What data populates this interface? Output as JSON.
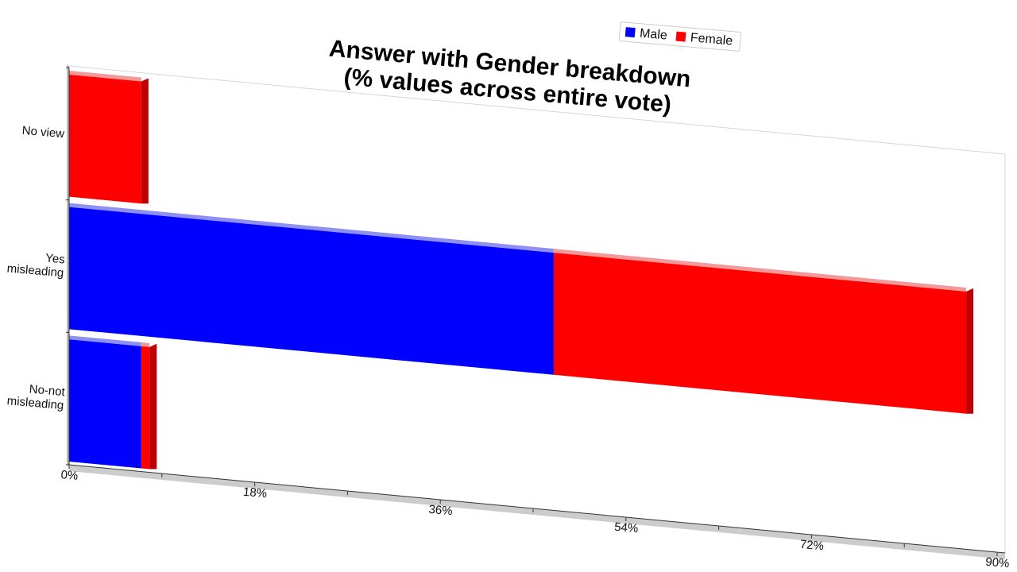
{
  "chart_data": {
    "type": "bar",
    "orientation": "horizontal",
    "stacked": true,
    "title": [
      "Answer with Gender breakdown",
      "(% values across entire vote)"
    ],
    "categories": [
      "No view",
      "Yes misleading",
      "No-not misleading"
    ],
    "category_label_lines": [
      [
        "No view"
      ],
      [
        "Yes",
        "misleading"
      ],
      [
        "No-not",
        "misleading"
      ]
    ],
    "series": [
      {
        "name": "Male",
        "color": "#0000ff",
        "values": [
          0,
          47,
          7
        ]
      },
      {
        "name": "Female",
        "color": "#ff0000",
        "values": [
          7,
          40,
          0.8
        ]
      }
    ],
    "xlim": [
      0,
      90
    ],
    "x_ticks": [
      0,
      18,
      36,
      54,
      72,
      90
    ],
    "x_tick_labels": [
      "0%",
      "18%",
      "36%",
      "54%",
      "72%",
      "90%"
    ],
    "legend_position": "top-right",
    "grid": false,
    "style": "3d"
  }
}
